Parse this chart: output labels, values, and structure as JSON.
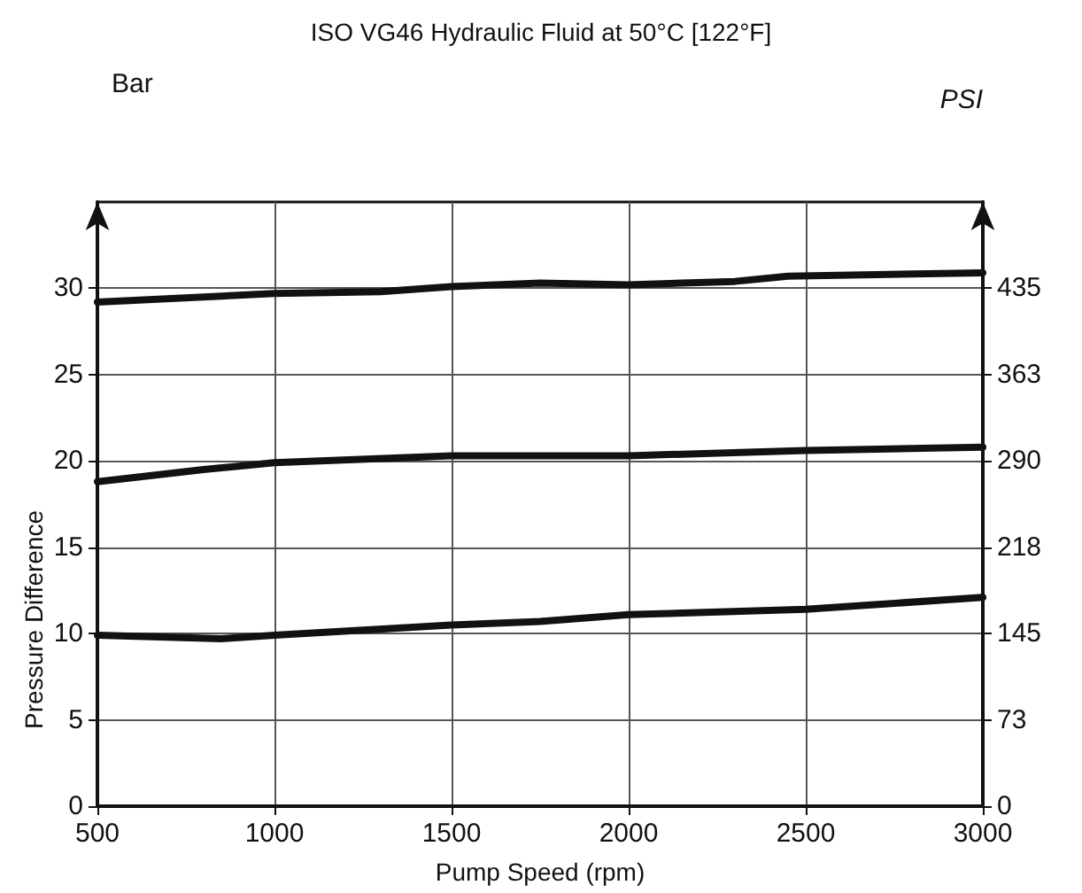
{
  "chart_data": {
    "type": "line",
    "title": "ISO VG46 Hydraulic Fluid at 50°C [122°F]",
    "xlabel": "Pump Speed (rpm)",
    "ylabel": "Pressure Difference",
    "y2label": "PSI",
    "annotations": [
      "Bar"
    ],
    "xlim": [
      500,
      3000
    ],
    "xticks": [
      500,
      1000,
      1500,
      2000,
      2500,
      3000
    ],
    "ylim": [
      0,
      35
    ],
    "yticks": [
      0,
      5,
      10,
      15,
      20,
      25,
      30
    ],
    "y2lim": [
      0,
      507.5
    ],
    "y2ticks": [
      {
        "value": 0,
        "label": "0"
      },
      {
        "value": 72.5,
        "label": "73"
      },
      {
        "value": 145,
        "label": "145"
      },
      {
        "value": 217.5,
        "label": "218"
      },
      {
        "value": 290,
        "label": "290"
      },
      {
        "value": 362.5,
        "label": "363"
      },
      {
        "value": 435,
        "label": "435"
      }
    ],
    "grid": true,
    "marker": "none",
    "line_style": "solid",
    "series": [
      {
        "color": "#111111",
        "x": [
          500,
          1000,
          1300,
          1500,
          1750,
          2000,
          2300,
          2450,
          3000
        ],
        "values": [
          29.2,
          29.7,
          29.8,
          30.1,
          30.3,
          30.2,
          30.4,
          30.7,
          30.9
        ]
      },
      {
        "color": "#111111",
        "x": [
          500,
          800,
          1000,
          1500,
          2000,
          2500,
          3000
        ],
        "values": [
          18.8,
          19.5,
          19.9,
          20.3,
          20.3,
          20.6,
          20.8
        ]
      },
      {
        "color": "#111111",
        "x": [
          500,
          850,
          1000,
          1500,
          1750,
          2000,
          2500,
          3000
        ],
        "values": [
          9.9,
          9.7,
          9.9,
          10.5,
          10.7,
          11.1,
          11.4,
          12.1
        ]
      }
    ]
  }
}
